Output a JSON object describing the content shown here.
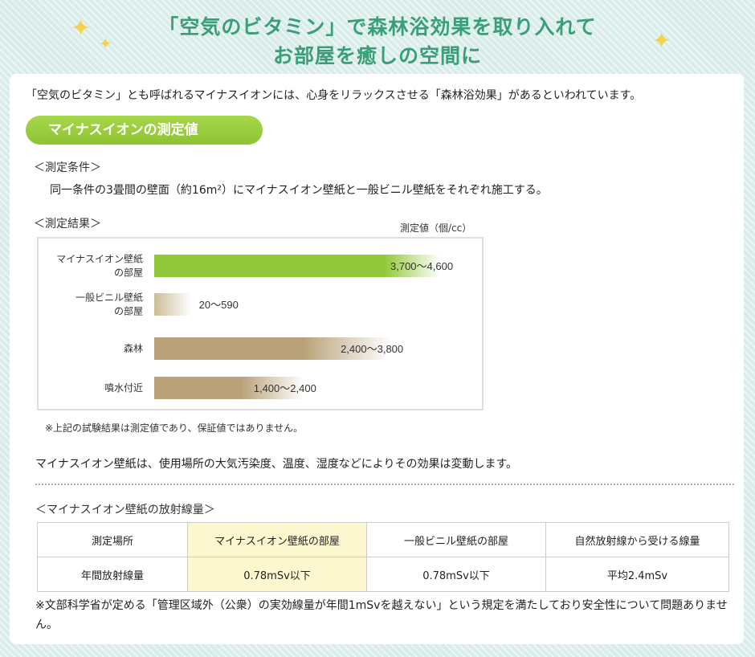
{
  "header": {
    "title_line1": "「空気のビタミン」で森林浴効果を取り入れて",
    "title_line2": "お部屋を癒しの空間に",
    "sparkle_icon": "✦",
    "title_color": "#3a9e78",
    "sparkle_color": "#f1d44c"
  },
  "intro": "「空気のビタミン」とも呼ばれるマイナスイオンには、心身をリラックスさせる「森林浴効果」があるといわれています。",
  "pill_label": "マイナスイオンの測定値",
  "conditions": {
    "heading": "＜測定条件＞",
    "text": "同一条件の3畳間の壁面（約16m²）にマイナスイオン壁紙と一般ビニル壁紙をそれぞれ施工する。"
  },
  "results_heading": "＜測定結果＞",
  "chart_data": {
    "type": "bar",
    "orientation": "horizontal",
    "unit_label": "測定値（個/cc）",
    "categories": [
      [
        "マイナスイオン壁紙",
        "の部屋"
      ],
      [
        "一般ビニル壁紙",
        "の部屋"
      ],
      [
        "森林"
      ],
      [
        "噴水付近"
      ]
    ],
    "ranges": [
      [
        3700,
        4600
      ],
      [
        20,
        590
      ],
      [
        2400,
        3800
      ],
      [
        1400,
        2400
      ]
    ],
    "value_labels": [
      "3,700～4,600",
      "20～590",
      "2,400～3,800",
      "1,400～2,400"
    ],
    "xlim": [
      0,
      4600
    ],
    "colors": [
      "#93c83a",
      "#ccbf9a",
      "#b9a27a",
      "#b9a27a"
    ],
    "grid": false
  },
  "note": "※上記の試験結果は測定値であり、保証値ではありません。",
  "body_text": "マイナスイオン壁紙は、使用場所の大気汚染度、温度、湿度などによりその効果は変動します。",
  "radiation": {
    "heading": "＜マイナスイオン壁紙の放射線量＞",
    "headers": [
      "測定場所",
      "マイナスイオン壁紙の部屋",
      "一般ビニル壁紙の部屋",
      "自然放射線から受ける線量"
    ],
    "row": [
      "年間放射線量",
      "0.78mSv以下",
      "0.78mSv以下",
      "平均2.4mSv"
    ],
    "highlight_color": "#fdf7cf"
  },
  "footnote": "※文部科学省が定める「管理区域外（公衆）の実効線量が年間1mSvを越えない」という規定を満たしており安全性について問題ありません。"
}
